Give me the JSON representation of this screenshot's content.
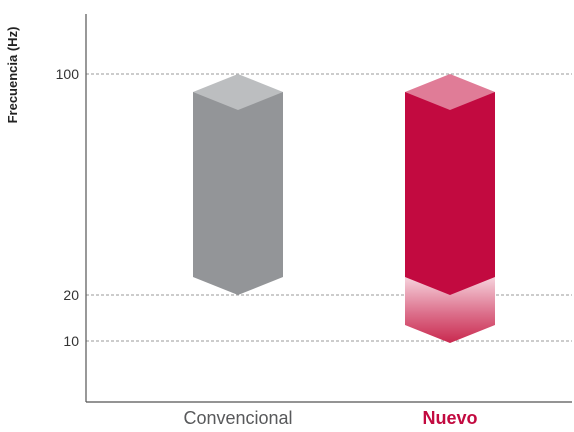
{
  "chart_data": {
    "type": "bar",
    "ylabel": "Frecuencia (Hz)",
    "xlabel": "",
    "y_ticks": [
      10,
      20,
      100
    ],
    "grid": true,
    "categories": [
      "Convencional",
      "Nuevo"
    ],
    "bars": [
      {
        "category": "Convencional",
        "low": 20,
        "high": 100,
        "color": "#939598",
        "label_color": "#58595b",
        "label_bold": false
      },
      {
        "category": "Nuevo",
        "low": 10,
        "high": 100,
        "color": "#c20a40",
        "extension_low": 10,
        "extension_high": 20,
        "extension_color": "#d9607f",
        "label_color": "#c20a40",
        "label_bold": true
      }
    ]
  },
  "colors": {
    "axis": "#555555",
    "grid": "#999999",
    "conventional": "#939598",
    "conventional_top": "#bcbec0",
    "new": "#c20a40",
    "new_top": "#e07c97"
  }
}
